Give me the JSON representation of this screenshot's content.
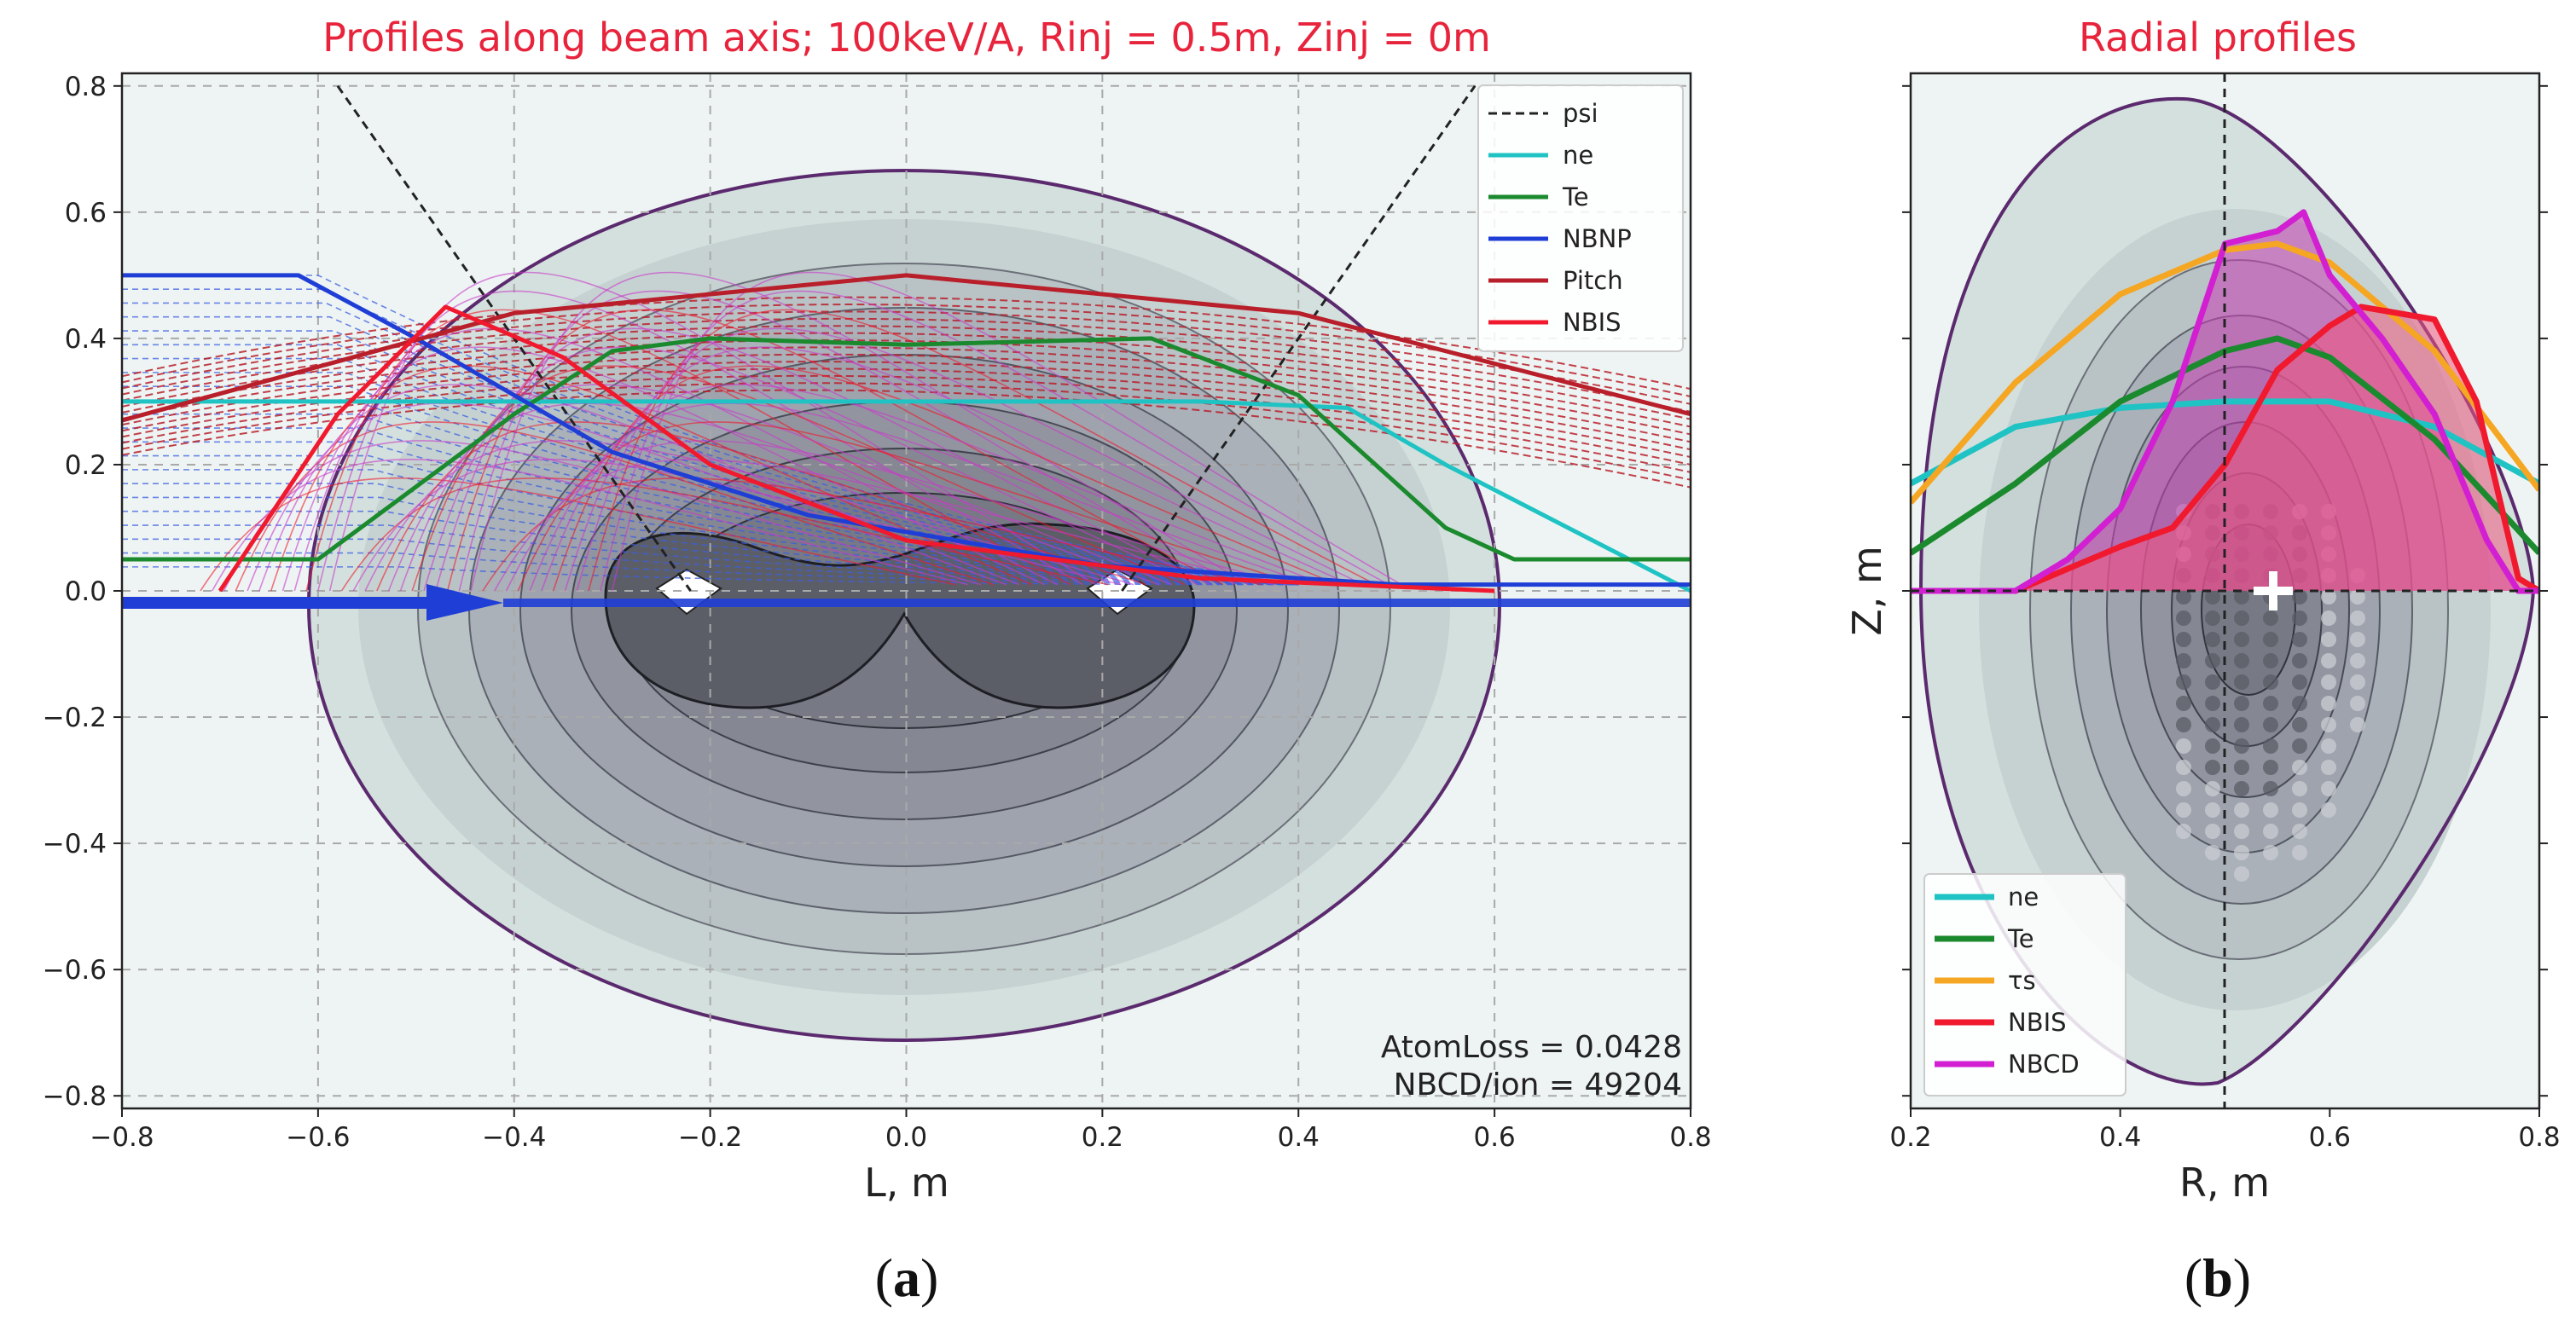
{
  "chart_data": [
    {
      "type": "line",
      "panel": "a",
      "title": "Profiles along beam axis;   100keV/A,  Rinj = 0.5m,  Zinj = 0m",
      "xlabel": "L, m",
      "ylabel": "",
      "xlim": [
        -0.8,
        0.8
      ],
      "ylim": [
        -0.82,
        0.82
      ],
      "grid": true,
      "legend_position": "top-right",
      "xticks": [
        "-0.8",
        "-0.6",
        "-0.4",
        "-0.2",
        "0.0",
        "0.2",
        "0.4",
        "0.6",
        "0.8"
      ],
      "yticks": [
        "0.8",
        "0.6",
        "0.4",
        "0.2",
        "0.0",
        "-0.2",
        "-0.4",
        "-0.6",
        "-0.8"
      ],
      "legend": [
        "psi",
        "ne",
        "Te",
        "NBNP",
        "Pitch",
        "NBIS"
      ],
      "annotations": [
        "AtomLoss = 0.0428",
        "NBCD/ion = 49204"
      ],
      "series": [
        {
          "name": "psi",
          "x": [
            -0.58,
            -0.22,
            0.22,
            0.58
          ],
          "values": [
            0.8,
            0.0,
            0.0,
            0.8
          ]
        },
        {
          "name": "ne",
          "x": [
            -0.8,
            -0.6,
            -0.45,
            -0.3,
            0.0,
            0.3,
            0.45,
            0.55,
            0.8
          ],
          "values": [
            0.3,
            0.3,
            0.3,
            0.3,
            0.3,
            0.3,
            0.29,
            0.2,
            0.0
          ]
        },
        {
          "name": "Te",
          "x": [
            -0.8,
            -0.6,
            -0.4,
            -0.3,
            -0.2,
            0.0,
            0.25,
            0.4,
            0.55,
            0.62,
            0.8
          ],
          "values": [
            0.05,
            0.05,
            0.28,
            0.38,
            0.4,
            0.39,
            0.4,
            0.31,
            0.1,
            0.05,
            0.05
          ]
        },
        {
          "name": "NBNP",
          "x": [
            -0.8,
            -0.62,
            -0.5,
            -0.3,
            -0.1,
            0.2,
            0.5,
            0.8
          ],
          "values": [
            0.5,
            0.5,
            0.4,
            0.22,
            0.12,
            0.04,
            0.01,
            0.01
          ]
        },
        {
          "name": "Pitch",
          "x": [
            -0.8,
            -0.4,
            0.0,
            0.4,
            0.8
          ],
          "values": [
            0.27,
            0.44,
            0.5,
            0.44,
            0.28
          ]
        },
        {
          "name": "NBIS",
          "x": [
            -0.7,
            -0.58,
            -0.47,
            -0.35,
            -0.2,
            0.0,
            0.3,
            0.6
          ],
          "values": [
            0.0,
            0.28,
            0.45,
            0.37,
            0.2,
            0.08,
            0.02,
            0.0
          ]
        }
      ]
    },
    {
      "type": "line",
      "panel": "b",
      "title": "Radial profiles",
      "xlabel": "R, m",
      "ylabel": "Z, m",
      "xlim": [
        0.2,
        0.8
      ],
      "ylim": [
        -0.82,
        0.82
      ],
      "grid": false,
      "legend_position": "bottom-left",
      "xticks": [
        "0.2",
        "0.4",
        "0.6",
        "0.8"
      ],
      "legend": [
        "ne",
        "Te",
        "τs",
        "NBIS",
        "NBCD"
      ],
      "series": [
        {
          "name": "ne",
          "x": [
            0.2,
            0.3,
            0.4,
            0.5,
            0.6,
            0.7,
            0.8
          ],
          "values": [
            0.17,
            0.26,
            0.29,
            0.3,
            0.3,
            0.26,
            0.17
          ]
        },
        {
          "name": "Te",
          "x": [
            0.2,
            0.3,
            0.4,
            0.5,
            0.55,
            0.6,
            0.7,
            0.8
          ],
          "values": [
            0.06,
            0.17,
            0.3,
            0.38,
            0.4,
            0.37,
            0.24,
            0.06
          ]
        },
        {
          "name": "τs",
          "x": [
            0.2,
            0.3,
            0.4,
            0.5,
            0.55,
            0.6,
            0.7,
            0.8
          ],
          "values": [
            0.14,
            0.33,
            0.47,
            0.54,
            0.55,
            0.52,
            0.38,
            0.16
          ]
        },
        {
          "name": "NBIS",
          "x": [
            0.2,
            0.3,
            0.4,
            0.45,
            0.5,
            0.55,
            0.6,
            0.63,
            0.7,
            0.74,
            0.78,
            0.8
          ],
          "values": [
            0.0,
            0.0,
            0.07,
            0.1,
            0.2,
            0.35,
            0.42,
            0.45,
            0.43,
            0.3,
            0.02,
            0.0
          ]
        },
        {
          "name": "NBCD",
          "x": [
            0.2,
            0.3,
            0.35,
            0.4,
            0.45,
            0.5,
            0.55,
            0.575,
            0.6,
            0.65,
            0.7,
            0.75,
            0.78,
            0.8
          ],
          "values": [
            0.0,
            0.0,
            0.05,
            0.13,
            0.3,
            0.55,
            0.57,
            0.6,
            0.5,
            0.4,
            0.28,
            0.08,
            0.0,
            0.0
          ]
        }
      ]
    }
  ],
  "captions": {
    "a": "(a)",
    "b": "(b)"
  },
  "colors": {
    "psi": "#222222",
    "ne": "#1fc3c3",
    "Te": "#1b8a2e",
    "NBNP": "#1f3ed6",
    "Pitch": "#b81f2a",
    "NBIS": "#f0192e",
    "tau_s": "#f5a623",
    "NBCD": "#d21fd1",
    "boundary": "#5b2a6e",
    "title": "#e8243c"
  }
}
